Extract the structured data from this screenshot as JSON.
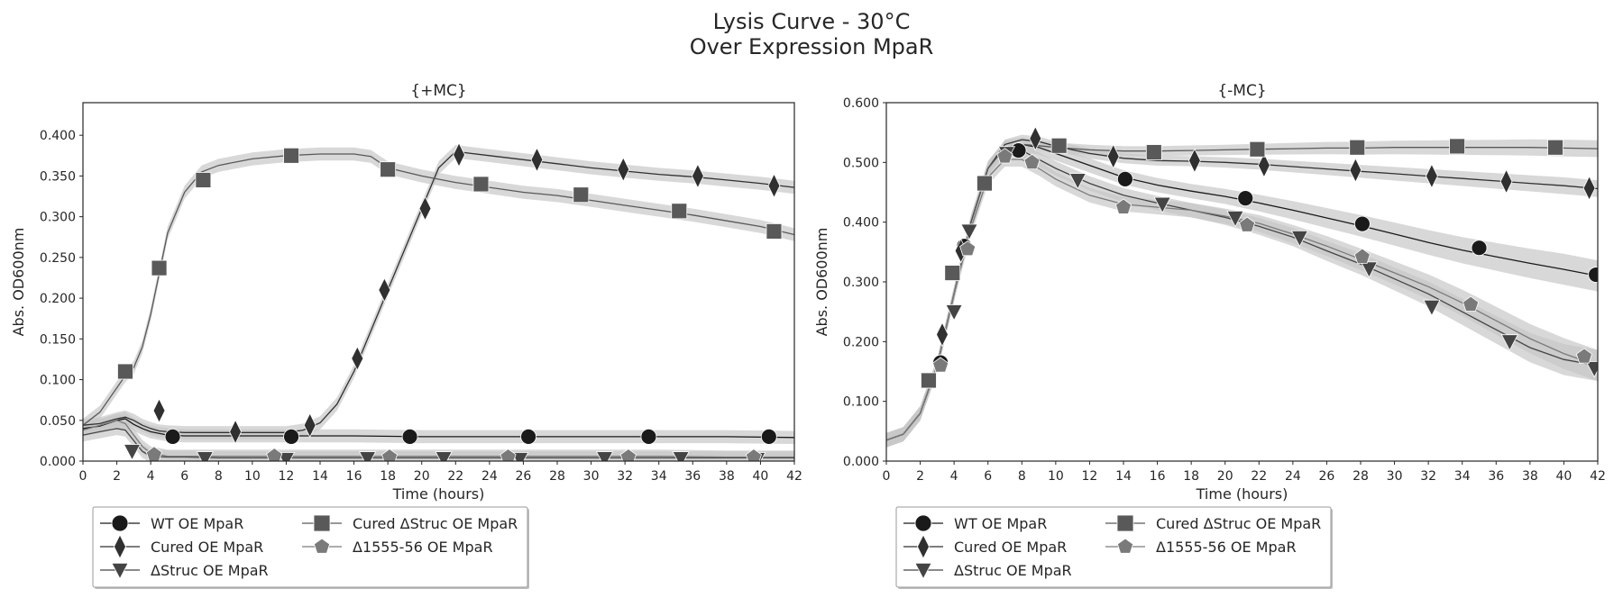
{
  "figure": {
    "suptitle_line1": "Lysis Curve - 30°C",
    "suptitle_line2": "Over Expression MpaR"
  },
  "colors": {
    "WT OE MpaR": "#1a1a1a",
    "Cured OE MpaR": "#303030",
    "ΔStruc OE MpaR": "#444444",
    "Cured ΔStruc OE MpaR": "#595959",
    "Δ1555-56 OE MpaR": "#7a7a7a",
    "band": "#c8c8c8"
  },
  "legend_labels": [
    "WT OE MpaR",
    "Cured OE MpaR",
    "ΔStruc OE MpaR",
    "Cured ΔStruc OE MpaR",
    "Δ1555-56 OE MpaR"
  ],
  "chart_data": [
    {
      "type": "line",
      "title": "{+MC}",
      "xlabel": "Time (hours)",
      "ylabel": "Abs. OD600nm",
      "xlim": [
        0,
        42
      ],
      "ylim": [
        0,
        0.44
      ],
      "xticks": [
        "0",
        "2",
        "4",
        "6",
        "8",
        "10",
        "12",
        "14",
        "16",
        "18",
        "20",
        "22",
        "24",
        "26",
        "28",
        "30",
        "32",
        "34",
        "36",
        "38",
        "40",
        "42"
      ],
      "yticks": [
        "0.000",
        "0.050",
        "0.100",
        "0.150",
        "0.200",
        "0.250",
        "0.300",
        "0.350",
        "0.400"
      ],
      "legend_position": "below-left",
      "grid": false,
      "series": [
        {
          "name": "WT OE MpaR",
          "marker": "circle",
          "x": [
            0,
            1,
            2,
            2.5,
            3,
            3.5,
            4,
            5,
            6,
            8,
            10,
            12,
            14,
            16,
            20,
            26,
            30,
            34,
            38,
            42
          ],
          "y": [
            0.04,
            0.043,
            0.05,
            0.052,
            0.045,
            0.04,
            0.036,
            0.032,
            0.031,
            0.031,
            0.031,
            0.031,
            0.031,
            0.031,
            0.03,
            0.03,
            0.03,
            0.03,
            0.03,
            0.029
          ],
          "markers": [
            [
              5.3,
              0.03
            ],
            [
              12.3,
              0.03
            ],
            [
              19.3,
              0.03
            ],
            [
              26.3,
              0.03
            ],
            [
              33.4,
              0.03
            ],
            [
              40.5,
              0.03
            ]
          ]
        },
        {
          "name": "Cured OE MpaR",
          "marker": "diamond",
          "x": [
            0,
            1,
            2,
            2.5,
            3,
            3.5,
            4,
            4.5,
            5,
            6,
            8,
            10,
            12,
            13,
            14,
            15,
            16,
            17,
            18,
            19,
            20,
            21,
            22,
            24,
            26,
            28,
            30,
            32,
            34,
            36,
            38,
            40,
            42
          ],
          "y": [
            0.044,
            0.046,
            0.052,
            0.054,
            0.05,
            0.044,
            0.04,
            0.037,
            0.036,
            0.035,
            0.035,
            0.035,
            0.035,
            0.038,
            0.047,
            0.07,
            0.11,
            0.16,
            0.21,
            0.26,
            0.31,
            0.36,
            0.38,
            0.375,
            0.37,
            0.365,
            0.36,
            0.356,
            0.352,
            0.349,
            0.345,
            0.341,
            0.336
          ],
          "markers": [
            [
              4.5,
              0.062
            ],
            [
              9,
              0.036
            ],
            [
              13.4,
              0.044
            ],
            [
              16.2,
              0.126
            ],
            [
              17.8,
              0.21
            ],
            [
              20.2,
              0.31
            ],
            [
              22.2,
              0.376
            ],
            [
              26.8,
              0.37
            ],
            [
              31.9,
              0.358
            ],
            [
              36.3,
              0.35
            ],
            [
              40.8,
              0.338
            ]
          ]
        },
        {
          "name": "ΔStruc OE MpaR",
          "marker": "triangle-down",
          "x": [
            0,
            1,
            2,
            2.5,
            3,
            3.5,
            4,
            5,
            6,
            8,
            10,
            12,
            16,
            20,
            26,
            30,
            34,
            38,
            42
          ],
          "y": [
            0.032,
            0.036,
            0.04,
            0.038,
            0.025,
            0.012,
            0.006,
            0.005,
            0.005,
            0.004,
            0.004,
            0.004,
            0.004,
            0.004,
            0.004,
            0.004,
            0.004,
            0.004,
            0.004
          ],
          "markers": [
            [
              2.9,
              0.012
            ],
            [
              7.2,
              0.003
            ],
            [
              12,
              0.002
            ],
            [
              16.8,
              0.003
            ],
            [
              21.3,
              0.003
            ],
            [
              25.8,
              0.002
            ],
            [
              30.8,
              0.003
            ],
            [
              35.3,
              0.003
            ],
            [
              39.8,
              0.002
            ]
          ]
        },
        {
          "name": "Cured ΔStruc OE MpaR",
          "marker": "square",
          "x": [
            0,
            1,
            2,
            2.5,
            3,
            3.5,
            4,
            4.5,
            5,
            6,
            7,
            8,
            9,
            10,
            12,
            14,
            16,
            17,
            18,
            20,
            22,
            24,
            26,
            28,
            30,
            32,
            34,
            36,
            38,
            40,
            42
          ],
          "y": [
            0.044,
            0.06,
            0.09,
            0.105,
            0.115,
            0.14,
            0.18,
            0.23,
            0.28,
            0.33,
            0.355,
            0.363,
            0.367,
            0.371,
            0.375,
            0.377,
            0.377,
            0.374,
            0.36,
            0.35,
            0.342,
            0.336,
            0.33,
            0.326,
            0.32,
            0.314,
            0.308,
            0.302,
            0.295,
            0.288,
            0.278
          ],
          "markers": [
            [
              2.5,
              0.11
            ],
            [
              4.5,
              0.237
            ],
            [
              7.1,
              0.345
            ],
            [
              12.3,
              0.375
            ],
            [
              18,
              0.358
            ],
            [
              23.5,
              0.34
            ],
            [
              29.4,
              0.327
            ],
            [
              35.2,
              0.307
            ],
            [
              40.8,
              0.282
            ]
          ]
        },
        {
          "name": "Δ1555-56 OE MpaR",
          "marker": "pentagon",
          "x": [
            0,
            1,
            2,
            2.5,
            3,
            3.5,
            4,
            5,
            6,
            8,
            12,
            16,
            20,
            26,
            30,
            34,
            38,
            42
          ],
          "y": [
            0.038,
            0.044,
            0.05,
            0.046,
            0.032,
            0.018,
            0.01,
            0.006,
            0.006,
            0.006,
            0.006,
            0.006,
            0.006,
            0.006,
            0.006,
            0.006,
            0.005,
            0.005
          ],
          "markers": [
            [
              4.2,
              0.008
            ],
            [
              11.3,
              0.006
            ],
            [
              18.1,
              0.005
            ],
            [
              25.1,
              0.005
            ],
            [
              32.2,
              0.005
            ],
            [
              39.6,
              0.005
            ]
          ]
        }
      ]
    },
    {
      "type": "line",
      "title": "{-MC}",
      "xlabel": "Time (hours)",
      "ylabel": "Abs. OD600nm",
      "xlim": [
        0,
        42
      ],
      "ylim": [
        0,
        0.6
      ],
      "xticks": [
        "0",
        "2",
        "4",
        "6",
        "8",
        "10",
        "12",
        "14",
        "16",
        "18",
        "20",
        "22",
        "24",
        "26",
        "28",
        "30",
        "32",
        "34",
        "36",
        "38",
        "40",
        "42"
      ],
      "yticks": [
        "0.000",
        "0.100",
        "0.200",
        "0.300",
        "0.400",
        "0.500",
        "0.600"
      ],
      "legend_position": "below-left",
      "grid": false,
      "series": [
        {
          "name": "WT OE MpaR",
          "marker": "circle",
          "x": [
            0,
            1,
            2,
            3,
            4,
            5,
            6,
            7,
            8,
            9,
            10,
            12,
            14,
            16,
            18,
            20,
            22,
            24,
            26,
            28,
            30,
            32,
            34,
            36,
            38,
            40,
            42
          ],
          "y": [
            0.035,
            0.045,
            0.08,
            0.16,
            0.28,
            0.4,
            0.49,
            0.525,
            0.53,
            0.525,
            0.515,
            0.495,
            0.475,
            0.462,
            0.452,
            0.443,
            0.432,
            0.42,
            0.407,
            0.394,
            0.38,
            0.366,
            0.353,
            0.342,
            0.331,
            0.321,
            0.31
          ],
          "markers": [
            [
              3.2,
              0.165
            ],
            [
              4.6,
              0.36
            ],
            [
              7.8,
              0.52
            ],
            [
              14.1,
              0.472
            ],
            [
              21.2,
              0.44
            ],
            [
              28.1,
              0.397
            ],
            [
              35,
              0.357
            ],
            [
              41.9,
              0.312
            ]
          ]
        },
        {
          "name": "Cured OE MpaR",
          "marker": "diamond",
          "x": [
            0,
            1,
            2,
            3,
            4,
            5,
            6,
            7,
            8,
            9,
            10,
            12,
            14,
            16,
            18,
            20,
            22,
            24,
            26,
            28,
            30,
            32,
            34,
            36,
            38,
            40,
            42
          ],
          "y": [
            0.035,
            0.045,
            0.08,
            0.16,
            0.28,
            0.4,
            0.49,
            0.53,
            0.538,
            0.535,
            0.527,
            0.515,
            0.507,
            0.503,
            0.502,
            0.5,
            0.497,
            0.493,
            0.489,
            0.485,
            0.481,
            0.477,
            0.473,
            0.469,
            0.465,
            0.461,
            0.456
          ],
          "markers": [
            [
              3.3,
              0.212
            ],
            [
              4.4,
              0.352
            ],
            [
              8.8,
              0.54
            ],
            [
              13.4,
              0.51
            ],
            [
              18.2,
              0.503
            ],
            [
              22.3,
              0.495
            ],
            [
              27.7,
              0.487
            ],
            [
              32.2,
              0.477
            ],
            [
              36.6,
              0.468
            ],
            [
              41.5,
              0.457
            ]
          ]
        },
        {
          "name": "ΔStruc OE MpaR",
          "marker": "triangle-down",
          "x": [
            0,
            1,
            2,
            3,
            4,
            5,
            6,
            7,
            8,
            9,
            10,
            12,
            14,
            16,
            18,
            20,
            22,
            24,
            26,
            28,
            30,
            32,
            34,
            36,
            38,
            40,
            42
          ],
          "y": [
            0.035,
            0.045,
            0.08,
            0.16,
            0.28,
            0.4,
            0.49,
            0.525,
            0.52,
            0.505,
            0.49,
            0.465,
            0.445,
            0.432,
            0.42,
            0.408,
            0.393,
            0.375,
            0.352,
            0.33,
            0.305,
            0.28,
            0.25,
            0.22,
            0.19,
            0.17,
            0.16
          ],
          "markers": [
            [
              4,
              0.25
            ],
            [
              4.9,
              0.385
            ],
            [
              7.1,
              0.515
            ],
            [
              11.3,
              0.47
            ],
            [
              16.3,
              0.43
            ],
            [
              20.6,
              0.407
            ],
            [
              24.4,
              0.374
            ],
            [
              28.5,
              0.322
            ],
            [
              32.2,
              0.258
            ],
            [
              36.8,
              0.2
            ],
            [
              41.8,
              0.155
            ]
          ]
        },
        {
          "name": "Cured ΔStruc OE MpaR",
          "marker": "square",
          "x": [
            0,
            1,
            2,
            3,
            4,
            5,
            6,
            7,
            8,
            9,
            10,
            12,
            14,
            16,
            18,
            20,
            22,
            24,
            26,
            28,
            30,
            32,
            34,
            36,
            38,
            40,
            42
          ],
          "y": [
            0.035,
            0.045,
            0.08,
            0.16,
            0.28,
            0.4,
            0.49,
            0.525,
            0.53,
            0.528,
            0.525,
            0.521,
            0.519,
            0.519,
            0.52,
            0.521,
            0.522,
            0.523,
            0.524,
            0.524,
            0.525,
            0.525,
            0.525,
            0.525,
            0.525,
            0.524,
            0.523
          ],
          "markers": [
            [
              2.5,
              0.135
            ],
            [
              3.9,
              0.315
            ],
            [
              5.8,
              0.465
            ],
            [
              10.2,
              0.528
            ],
            [
              15.8,
              0.517
            ],
            [
              21.9,
              0.522
            ],
            [
              27.8,
              0.525
            ],
            [
              33.7,
              0.527
            ],
            [
              39.5,
              0.525
            ]
          ]
        },
        {
          "name": "Δ1555-56 OE MpaR",
          "marker": "pentagon",
          "x": [
            0,
            1,
            2,
            3,
            4,
            5,
            6,
            7,
            8,
            9,
            10,
            12,
            14,
            16,
            18,
            20,
            22,
            24,
            26,
            28,
            30,
            32,
            34,
            36,
            38,
            40,
            42
          ],
          "y": [
            0.035,
            0.045,
            0.08,
            0.16,
            0.28,
            0.39,
            0.475,
            0.505,
            0.505,
            0.49,
            0.472,
            0.445,
            0.43,
            0.425,
            0.42,
            0.41,
            0.398,
            0.38,
            0.36,
            0.338,
            0.315,
            0.292,
            0.265,
            0.235,
            0.205,
            0.18,
            0.16
          ],
          "markers": [
            [
              3.2,
              0.16
            ],
            [
              4.8,
              0.355
            ],
            [
              7,
              0.51
            ],
            [
              8.6,
              0.5
            ],
            [
              14,
              0.425
            ],
            [
              21.3,
              0.395
            ],
            [
              28.1,
              0.342
            ],
            [
              34.5,
              0.262
            ],
            [
              41.2,
              0.175
            ]
          ]
        }
      ]
    }
  ]
}
